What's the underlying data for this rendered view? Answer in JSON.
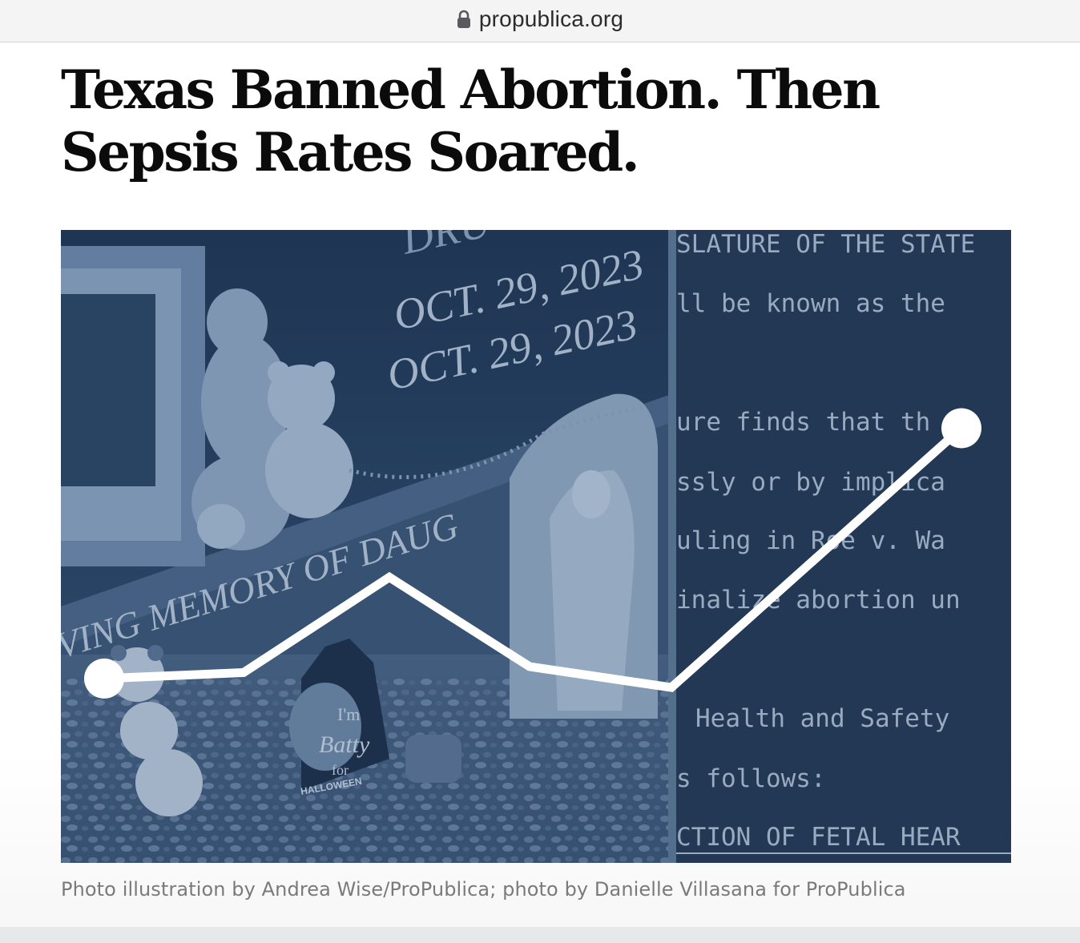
{
  "browser": {
    "url": "propublica.org",
    "lock_icon": "lock-icon"
  },
  "article": {
    "headline": "Texas Banned Abortion. Then Sepsis Rates Soared.",
    "caption": "Photo illustration by Andrea Wise/ProPublica; photo by Danielle Villasana for ProPublica"
  },
  "illustration": {
    "headstone_text": {
      "date_line_1": "OCT. 29, 2023",
      "date_line_2": "OCT. 29, 2023",
      "top_partial": "DRU",
      "memorial_line": "VING MEMORY OF DAUG"
    },
    "figurine_sign": [
      "I'm",
      "Batty",
      "for",
      "HALLOWEEN"
    ],
    "legislation_lines": [
      "SLATURE OF THE STATE",
      "ll be known as the",
      "ure finds that th",
      "ssly or by implica",
      "uling in Roe v. Wa",
      "inalize abortion un",
      "Health and Safety",
      "s follows:",
      "CTION OF FETAL HEAR"
    ],
    "trend_line": {
      "type": "line",
      "values": [
        0.14,
        0.16,
        0.48,
        0.18,
        0.11,
        0.98
      ],
      "line_color": "#ffffff",
      "overlay_color": "#2b4566"
    }
  }
}
